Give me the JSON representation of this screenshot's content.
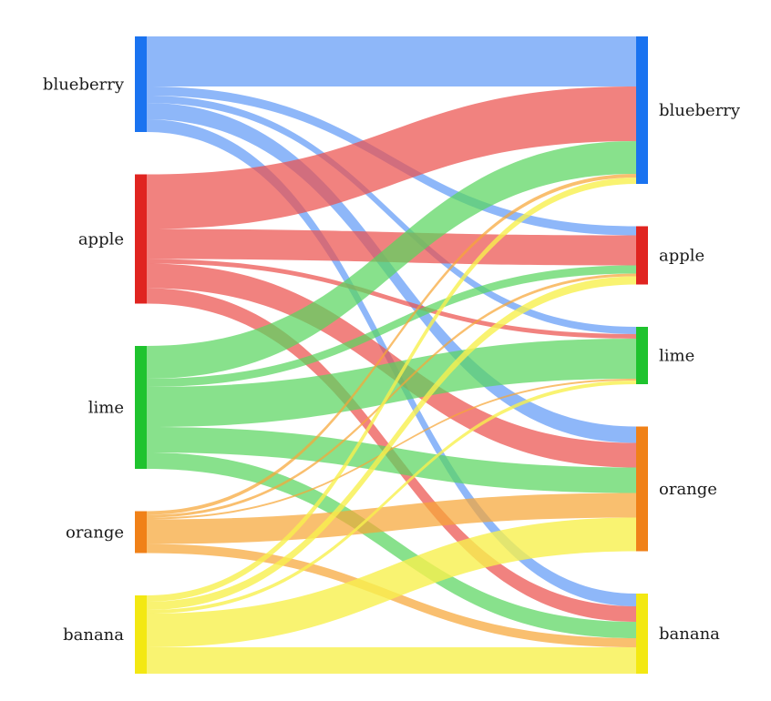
{
  "chart_data": {
    "type": "sankey",
    "title": "",
    "background": "#ffffff",
    "node_order": [
      "blueberry",
      "apple",
      "lime",
      "orange",
      "banana"
    ],
    "nodes": {
      "blueberry": {
        "label": "blueberry",
        "color": "#1a73f0",
        "link_color": "rgba(72,139,245,0.62)"
      },
      "apple": {
        "label": "apple",
        "color": "#e02420",
        "link_color": "rgba(235,82,78,0.72)"
      },
      "lime": {
        "label": "lime",
        "color": "#1fc32e",
        "link_color": "rgba(90,214,96,0.72)"
      },
      "orange": {
        "label": "orange",
        "color": "#f08118",
        "link_color": "rgba(246,166,56,0.72)"
      },
      "banana": {
        "label": "banana",
        "color": "#f3e812",
        "link_color": "rgba(247,240,78,0.80)"
      }
    },
    "links": [
      {
        "source": "blueberry",
        "target": "blueberry",
        "value": 55
      },
      {
        "source": "blueberry",
        "target": "apple",
        "value": 10
      },
      {
        "source": "blueberry",
        "target": "lime",
        "value": 8
      },
      {
        "source": "blueberry",
        "target": "orange",
        "value": 18
      },
      {
        "source": "blueberry",
        "target": "banana",
        "value": 14
      },
      {
        "source": "apple",
        "target": "blueberry",
        "value": 60
      },
      {
        "source": "apple",
        "target": "apple",
        "value": 33
      },
      {
        "source": "apple",
        "target": "lime",
        "value": 5
      },
      {
        "source": "apple",
        "target": "orange",
        "value": 27
      },
      {
        "source": "apple",
        "target": "banana",
        "value": 17
      },
      {
        "source": "lime",
        "target": "blueberry",
        "value": 36
      },
      {
        "source": "lime",
        "target": "apple",
        "value": 9
      },
      {
        "source": "lime",
        "target": "lime",
        "value": 44
      },
      {
        "source": "lime",
        "target": "orange",
        "value": 28
      },
      {
        "source": "lime",
        "target": "banana",
        "value": 18
      },
      {
        "source": "orange",
        "target": "blueberry",
        "value": 4
      },
      {
        "source": "orange",
        "target": "apple",
        "value": 3
      },
      {
        "source": "orange",
        "target": "lime",
        "value": 2
      },
      {
        "source": "orange",
        "target": "orange",
        "value": 27
      },
      {
        "source": "orange",
        "target": "banana",
        "value": 10
      },
      {
        "source": "banana",
        "target": "blueberry",
        "value": 7
      },
      {
        "source": "banana",
        "target": "apple",
        "value": 9
      },
      {
        "source": "banana",
        "target": "lime",
        "value": 4
      },
      {
        "source": "banana",
        "target": "orange",
        "value": 37
      },
      {
        "source": "banana",
        "target": "banana",
        "value": 29
      }
    ],
    "legend": "none",
    "axes": "none"
  }
}
